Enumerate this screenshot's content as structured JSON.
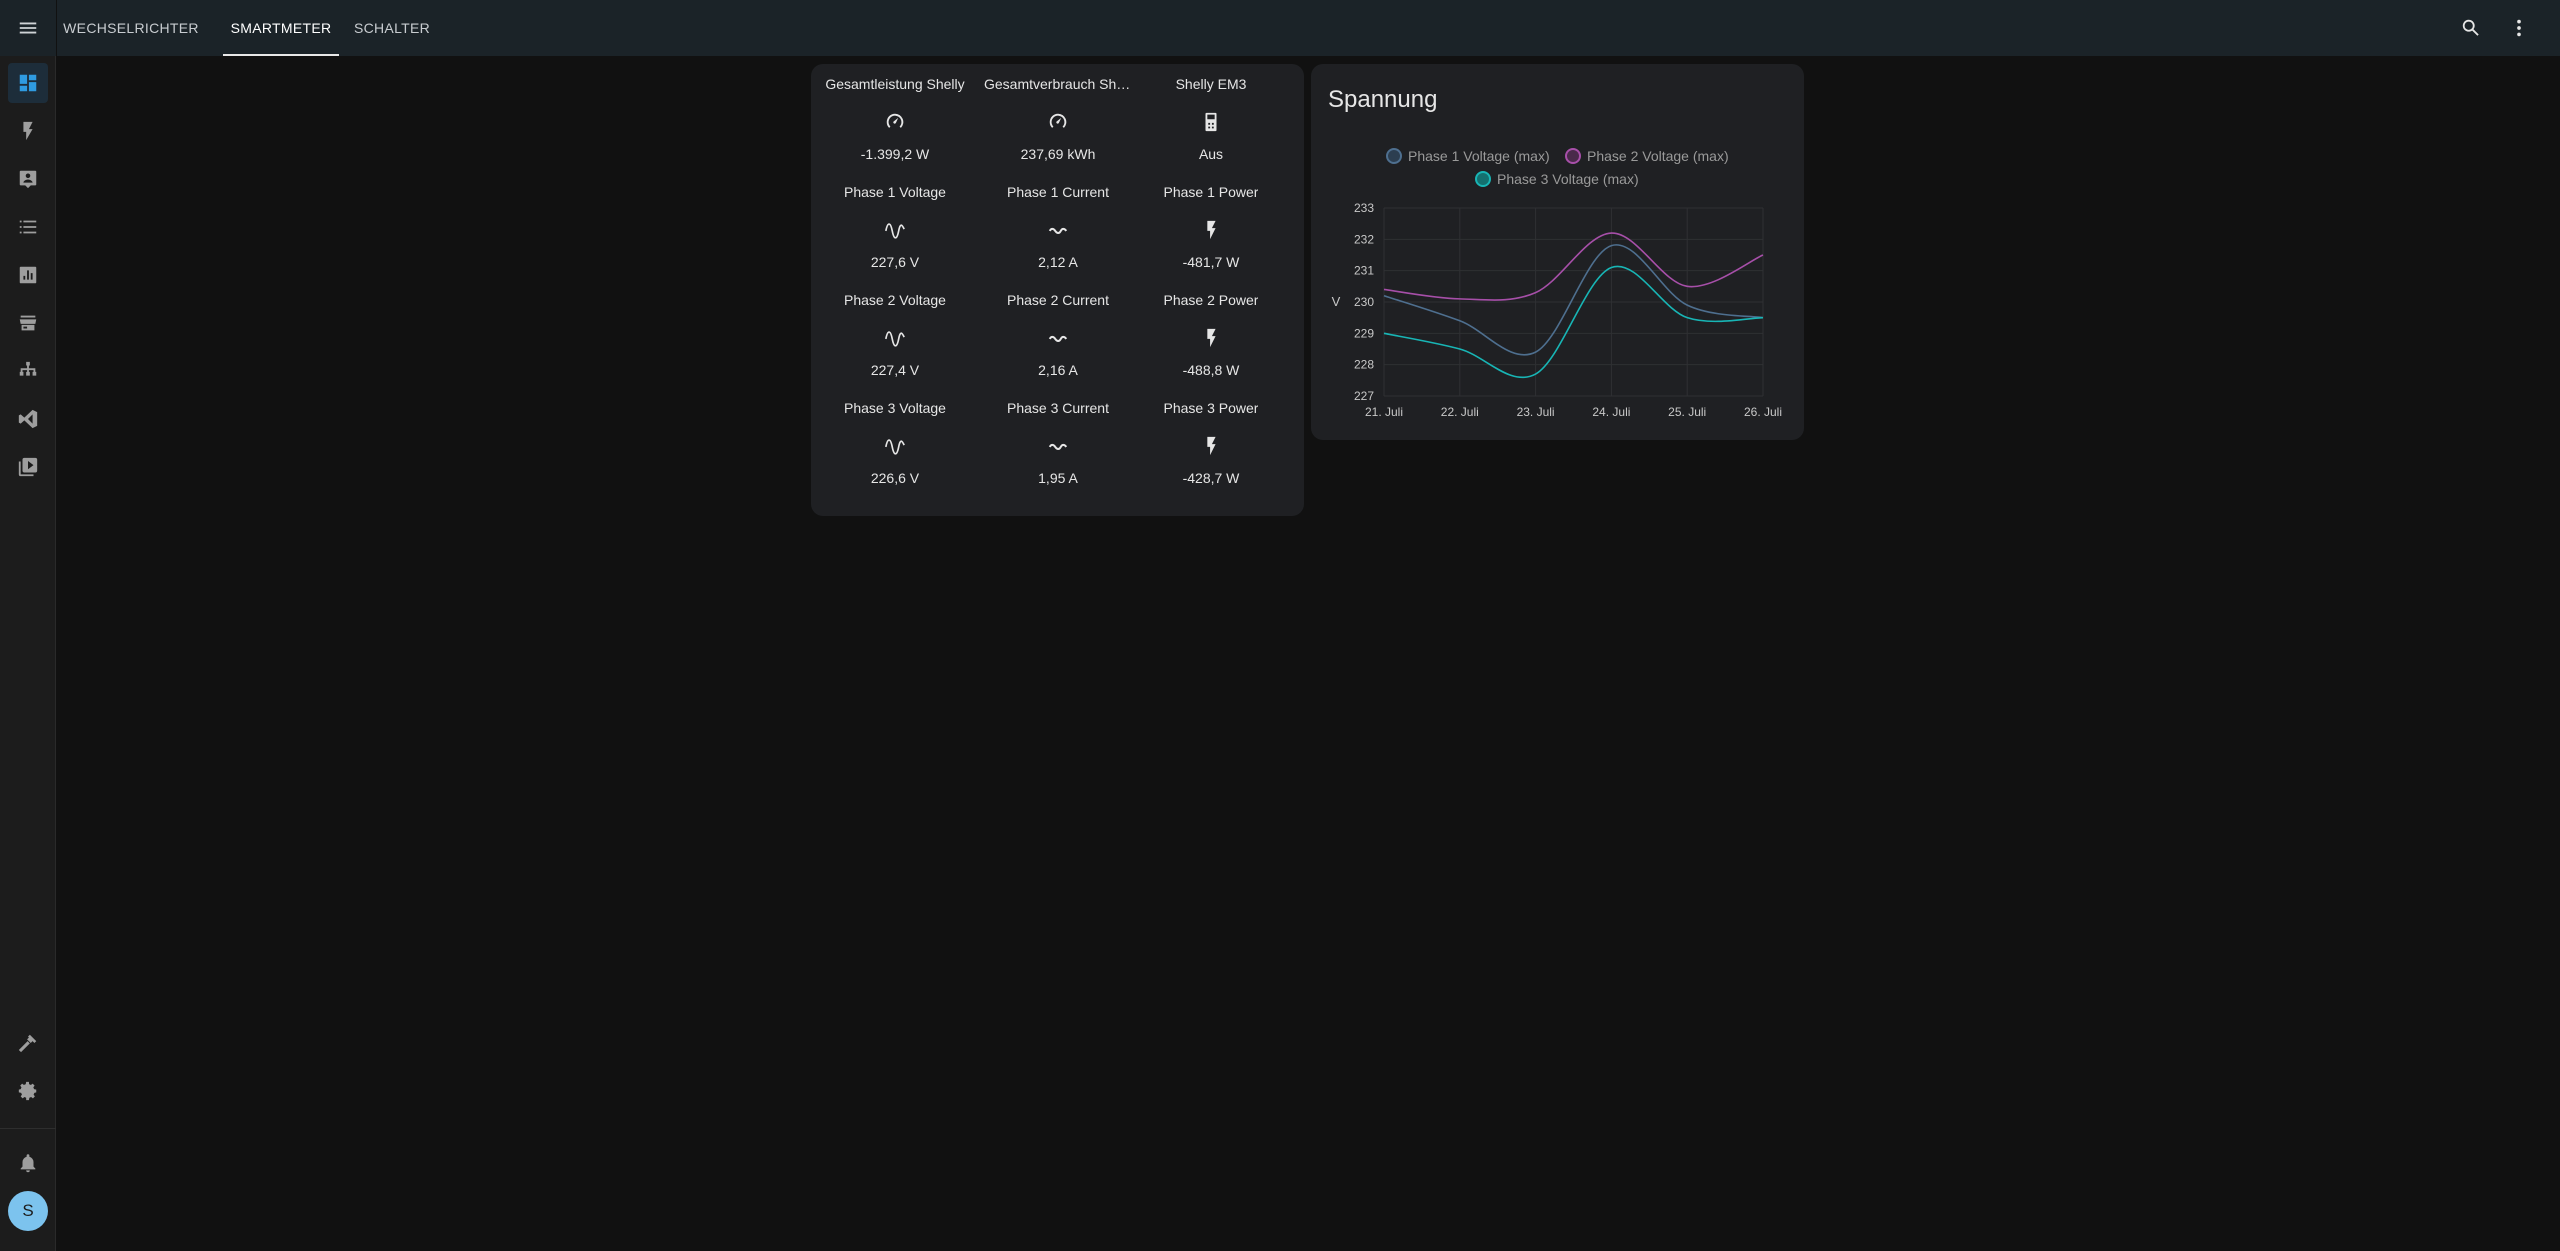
{
  "topbar": {
    "tabs": [
      {
        "label": "WECHSELRICHTER"
      },
      {
        "label": "SMARTMETER"
      },
      {
        "label": "SCHALTER"
      }
    ]
  },
  "sidebar": {
    "avatar_initial": "S"
  },
  "glance": {
    "cells": [
      {
        "name": "Gesamtleistung Shelly",
        "icon": "gauge-icon",
        "value": "-1.399,2 W"
      },
      {
        "name": "Gesamtverbrauch Shelly",
        "icon": "gauge-icon",
        "value": "237,69 kWh"
      },
      {
        "name": "Shelly EM3",
        "icon": "device-icon",
        "value": "Aus"
      },
      {
        "name": "Phase 1 Voltage",
        "icon": "sine-wave-icon",
        "value": "227,6 V"
      },
      {
        "name": "Phase 1 Current",
        "icon": "current-ac-icon",
        "value": "2,12 A"
      },
      {
        "name": "Phase 1 Power",
        "icon": "flash-icon",
        "value": "-481,7 W"
      },
      {
        "name": "Phase 2 Voltage",
        "icon": "sine-wave-icon",
        "value": "227,4 V"
      },
      {
        "name": "Phase 2 Current",
        "icon": "current-ac-icon",
        "value": "2,16 A"
      },
      {
        "name": "Phase 2 Power",
        "icon": "flash-icon",
        "value": "-488,8 W"
      },
      {
        "name": "Phase 3 Voltage",
        "icon": "sine-wave-icon",
        "value": "226,6 V"
      },
      {
        "name": "Phase 3 Current",
        "icon": "current-ac-icon",
        "value": "1,95 A"
      },
      {
        "name": "Phase 3 Power",
        "icon": "flash-icon",
        "value": "-428,7 W"
      }
    ]
  },
  "chart_data": {
    "type": "line",
    "title": "Spannung",
    "ylabel": "V",
    "ylim": [
      227,
      233
    ],
    "y_ticks": [
      233,
      232,
      231,
      230,
      229,
      228,
      227
    ],
    "categories": [
      "21. Juli",
      "22. Juli",
      "23. Juli",
      "24. Juli",
      "25. Juli",
      "26. Juli"
    ],
    "series": [
      {
        "name": "Phase 1 Voltage (max)",
        "color": "#4e6f8f",
        "values": [
          230.2,
          229.4,
          228.4,
          231.8,
          229.9,
          229.5
        ]
      },
      {
        "name": "Phase 2 Voltage (max)",
        "color": "#a74fa9",
        "values": [
          230.4,
          230.1,
          230.3,
          232.2,
          230.5,
          231.5
        ]
      },
      {
        "name": "Phase 3 Voltage (max)",
        "color": "#18b5b5",
        "values": [
          229.0,
          228.5,
          227.7,
          231.1,
          229.5,
          229.5
        ]
      }
    ],
    "grid": true,
    "legend": "top-center"
  }
}
